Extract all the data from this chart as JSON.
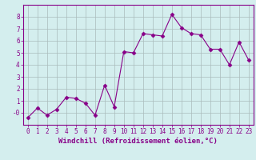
{
  "x": [
    0,
    1,
    2,
    3,
    4,
    5,
    6,
    7,
    8,
    9,
    10,
    11,
    12,
    13,
    14,
    15,
    16,
    17,
    18,
    19,
    20,
    21,
    22,
    23
  ],
  "y": [
    -0.4,
    0.4,
    -0.2,
    0.3,
    1.3,
    1.2,
    0.8,
    -0.2,
    2.3,
    0.5,
    5.1,
    5.0,
    6.6,
    6.5,
    6.4,
    8.2,
    7.1,
    6.6,
    6.5,
    5.3,
    5.3,
    4.0,
    5.9,
    4.4
  ],
  "line_color": "#880088",
  "marker": "D",
  "marker_size": 2.5,
  "bg_color": "#d4eeee",
  "grid_color": "#aabbbb",
  "xlabel": "Windchill (Refroidissement éolien,°C)",
  "xlim": [
    -0.5,
    23.5
  ],
  "ylim": [
    -1.0,
    9.0
  ],
  "yticks": [
    0,
    1,
    2,
    3,
    4,
    5,
    6,
    7,
    8
  ],
  "xticks": [
    0,
    1,
    2,
    3,
    4,
    5,
    6,
    7,
    8,
    9,
    10,
    11,
    12,
    13,
    14,
    15,
    16,
    17,
    18,
    19,
    20,
    21,
    22,
    23
  ],
  "tick_color": "#880088",
  "label_color": "#880088",
  "font_family": "monospace",
  "tick_fontsize": 5.5,
  "xlabel_fontsize": 6.5
}
